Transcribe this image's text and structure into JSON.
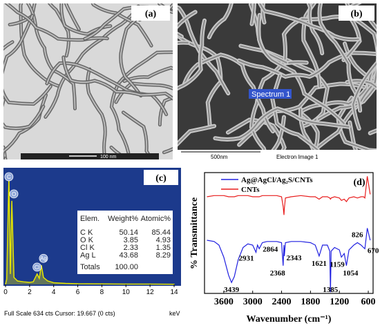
{
  "panel_a": {
    "label": "(a)",
    "scale_bar": "100 nm"
  },
  "panel_b": {
    "label": "(b)",
    "spectrum_label": "Spectrum 1",
    "scale_bar": "500nm",
    "caption": "Electron Image 1"
  },
  "panel_c_table": {
    "header": [
      "Elem.",
      "Weight%",
      "Atomic%"
    ],
    "rows": [
      [
        "C K",
        "50.14",
        "85.44"
      ],
      [
        "O K",
        "3.85",
        "4.93"
      ],
      [
        "Cl K",
        "2.33",
        "1.35"
      ],
      [
        "Ag L",
        "43.68",
        "8.29"
      ]
    ],
    "totals": [
      "Totals",
      "100.00"
    ]
  },
  "chart_data": [
    {
      "type": "spectrum",
      "label": "(c)",
      "color": "#e6e600",
      "x": [
        0.1,
        0.28,
        0.4,
        0.52,
        0.7,
        1.0,
        1.5,
        2.0,
        2.3,
        2.62,
        2.8,
        2.98,
        3.15,
        3.5,
        4,
        5,
        6,
        8,
        10,
        12,
        14
      ],
      "values": [
        30,
        620,
        60,
        480,
        40,
        20,
        15,
        12,
        15,
        60,
        35,
        110,
        40,
        20,
        10,
        6,
        4,
        3,
        2,
        2,
        1
      ],
      "xlim": [
        0,
        14
      ],
      "xticks": [
        0,
        2,
        4,
        6,
        8,
        10,
        12,
        14
      ],
      "x_unit": "keV",
      "ylim": [
        0,
        634
      ],
      "footer": "Full Scale 634 cts Cursor: 19.667  (0 cts)",
      "peak_labels": [
        {
          "text": "C",
          "x": 0.28
        },
        {
          "text": "O",
          "x": 0.52
        },
        {
          "text": "Cl",
          "x": 2.62
        },
        {
          "text": "Ag",
          "x": 2.98
        }
      ]
    },
    {
      "type": "line",
      "label": "(d)",
      "xlabel": "Wavenumber (cm⁻¹)",
      "ylabel": "% Transmittance",
      "x": [
        3950,
        3800,
        3700,
        3600,
        3500,
        3439,
        3380,
        3300,
        3200,
        3100,
        3000,
        2931,
        2900,
        2864,
        2800,
        2700,
        2500,
        2400,
        2368,
        2350,
        2343,
        2320,
        2200,
        2000,
        1800,
        1700,
        1621,
        1550,
        1450,
        1400,
        1385,
        1370,
        1300,
        1200,
        1159,
        1100,
        1054,
        1000,
        900,
        826,
        750,
        700,
        670,
        620,
        560
      ],
      "series": [
        {
          "name": "Ag@AgCl/Ag₂S/CNTs",
          "color": "#1f1fe0",
          "values": [
            44,
            43,
            40,
            30,
            15,
            9,
            14,
            28,
            38,
            41,
            40,
            34,
            40,
            37,
            42,
            43,
            43,
            42,
            23,
            40,
            31,
            42,
            43,
            43,
            42,
            40,
            31,
            40,
            40,
            35,
            1,
            35,
            38,
            36,
            30,
            33,
            23,
            36,
            40,
            42,
            40,
            38,
            37,
            54,
            44
          ]
        },
        {
          "name": "CNTs",
          "color": "#e81c1c",
          "values": [
            80,
            81,
            81,
            81,
            80,
            80,
            80,
            81,
            81,
            81,
            80,
            80,
            80,
            80,
            81,
            81,
            81,
            80,
            72,
            65,
            70,
            79,
            80,
            81,
            80,
            80,
            78,
            80,
            80,
            79,
            78,
            79,
            80,
            79,
            77,
            78,
            76,
            79,
            80,
            79,
            80,
            80,
            79,
            97,
            82
          ]
        }
      ],
      "xlim": [
        4000,
        500
      ],
      "xticks": [
        3600,
        3000,
        2400,
        1800,
        1200,
        600
      ],
      "ylim": [
        0,
        100
      ],
      "annotations": [
        3439,
        2931,
        2864,
        2368,
        2343,
        1621,
        1385,
        1159,
        1054,
        826,
        670
      ]
    }
  ]
}
